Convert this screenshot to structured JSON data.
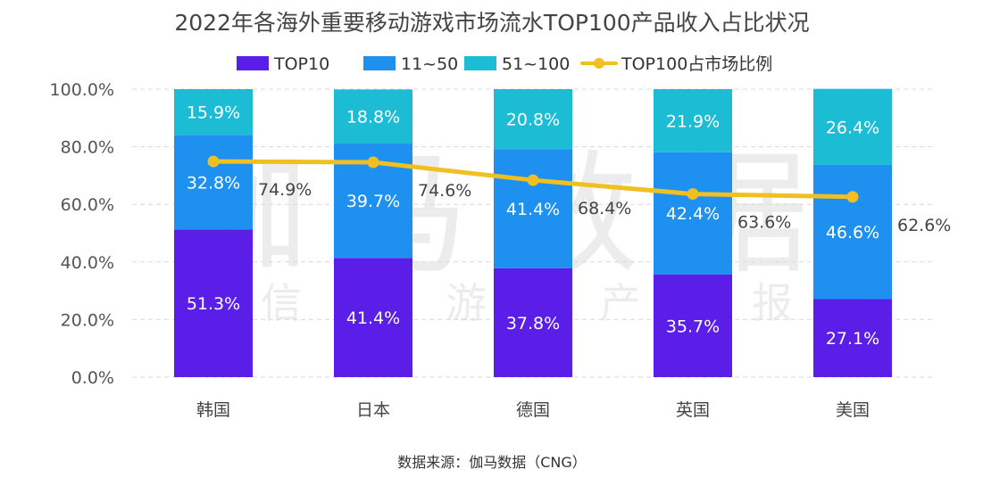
{
  "chart_data": {
    "type": "bar",
    "stacked": true,
    "title": "2022年各海外重要移动游戏市场流水TOP100产品收入占比状况",
    "categories": [
      "韩国",
      "日本",
      "德国",
      "英国",
      "美国"
    ],
    "series": [
      {
        "name": "TOP10",
        "values": [
          51.3,
          41.4,
          37.8,
          35.7,
          27.1
        ],
        "labels": [
          "51.3%",
          "41.4%",
          "37.8%",
          "35.7%",
          "27.1%"
        ],
        "color": "#5a1ee8"
      },
      {
        "name": "11~50",
        "values": [
          32.8,
          39.7,
          41.4,
          42.4,
          46.6
        ],
        "labels": [
          "32.8%",
          "39.7%",
          "41.4%",
          "42.4%",
          "46.6%"
        ],
        "color": "#1e90f0"
      },
      {
        "name": "51~100",
        "values": [
          15.9,
          18.8,
          20.8,
          21.9,
          26.4
        ],
        "labels": [
          "15.9%",
          "18.8%",
          "20.8%",
          "21.9%",
          "26.4%"
        ],
        "color": "#1cbcd4"
      }
    ],
    "line_series": {
      "name": "TOP100占市场比例",
      "values": [
        74.9,
        74.6,
        68.4,
        63.6,
        62.6
      ],
      "labels": [
        "74.9%",
        "74.6%",
        "68.4%",
        "63.6%",
        "62.6%"
      ],
      "color": "#f0c020"
    },
    "y_ticks": [
      "0.0%",
      "20.0%",
      "40.0%",
      "60.0%",
      "80.0%",
      "100.0%"
    ],
    "ylim": [
      0,
      100
    ],
    "grid": true,
    "legend_position": "top",
    "source": "数据来源：伽马数据（CNG）",
    "watermark": {
      "logo": "伽马数据",
      "tagline": [
        "信",
        "息",
        "游",
        "戏",
        "产",
        "业",
        "报",
        "告"
      ]
    }
  }
}
